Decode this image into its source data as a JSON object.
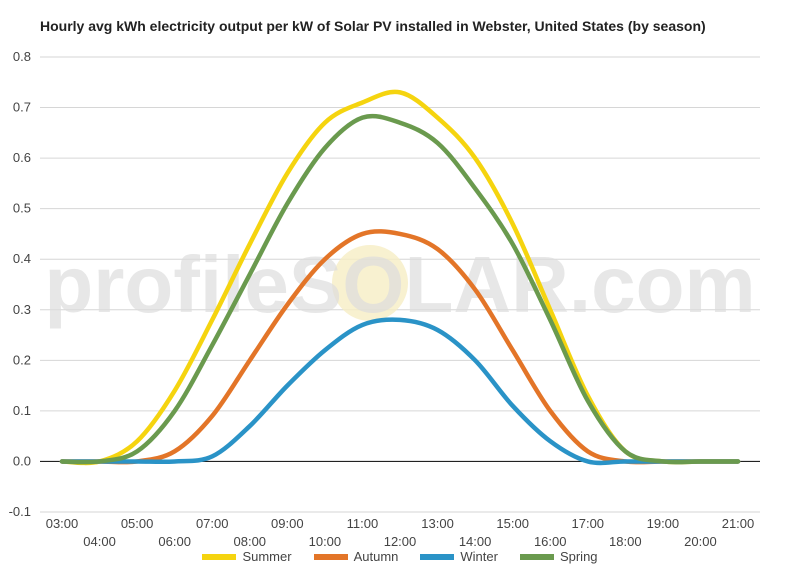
{
  "chart_data": {
    "type": "line",
    "title": "Hourly avg kWh electricity output per kW of Solar PV installed in Webster, United States (by season)",
    "xlabel": "",
    "ylabel": "",
    "ylim": [
      -0.1,
      0.8
    ],
    "xlim": [
      3,
      21
    ],
    "yticks": [
      "-0.1",
      "0.0",
      "0.1",
      "0.2",
      "0.3",
      "0.4",
      "0.5",
      "0.6",
      "0.7",
      "0.8"
    ],
    "xticks": [
      "03:00",
      "04:00",
      "05:00",
      "06:00",
      "07:00",
      "08:00",
      "09:00",
      "10:00",
      "11:00",
      "12:00",
      "13:00",
      "14:00",
      "15:00",
      "16:00",
      "17:00",
      "18:00",
      "19:00",
      "20:00",
      "21:00"
    ],
    "grid": true,
    "legend_position": "bottom",
    "watermark": "profileSOLAR.com",
    "series": [
      {
        "name": "Summer",
        "color": "#f5d40f",
        "x": [
          3,
          4,
          5,
          6,
          7,
          8,
          9,
          10,
          11,
          12,
          13,
          14,
          15,
          16,
          17,
          18,
          19,
          20,
          21
        ],
        "values": [
          0.0,
          0.0,
          0.04,
          0.14,
          0.28,
          0.43,
          0.57,
          0.67,
          0.71,
          0.73,
          0.68,
          0.6,
          0.47,
          0.3,
          0.13,
          0.02,
          0.0,
          0.0,
          0.0
        ]
      },
      {
        "name": "Autumn",
        "color": "#e37528",
        "x": [
          3,
          4,
          5,
          6,
          7,
          8,
          9,
          10,
          11,
          12,
          13,
          14,
          15,
          16,
          17,
          18,
          19,
          20,
          21
        ],
        "values": [
          0.0,
          0.0,
          0.0,
          0.02,
          0.09,
          0.2,
          0.31,
          0.4,
          0.45,
          0.45,
          0.42,
          0.34,
          0.22,
          0.1,
          0.02,
          0.0,
          0.0,
          0.0,
          0.0
        ]
      },
      {
        "name": "Winter",
        "color": "#2a93c7",
        "x": [
          3,
          4,
          5,
          6,
          7,
          8,
          9,
          10,
          11,
          12,
          13,
          14,
          15,
          16,
          17,
          18,
          19,
          20,
          21
        ],
        "values": [
          0.0,
          0.0,
          0.0,
          0.0,
          0.01,
          0.07,
          0.15,
          0.22,
          0.27,
          0.28,
          0.26,
          0.2,
          0.11,
          0.04,
          0.0,
          0.0,
          0.0,
          0.0,
          0.0
        ]
      },
      {
        "name": "Spring",
        "color": "#6a9a4e",
        "x": [
          3,
          4,
          5,
          6,
          7,
          8,
          9,
          10,
          11,
          12,
          13,
          14,
          15,
          16,
          17,
          18,
          19,
          20,
          21
        ],
        "values": [
          0.0,
          0.0,
          0.02,
          0.1,
          0.23,
          0.37,
          0.51,
          0.62,
          0.68,
          0.67,
          0.63,
          0.54,
          0.43,
          0.28,
          0.12,
          0.02,
          0.0,
          0.0,
          0.0
        ]
      }
    ]
  }
}
